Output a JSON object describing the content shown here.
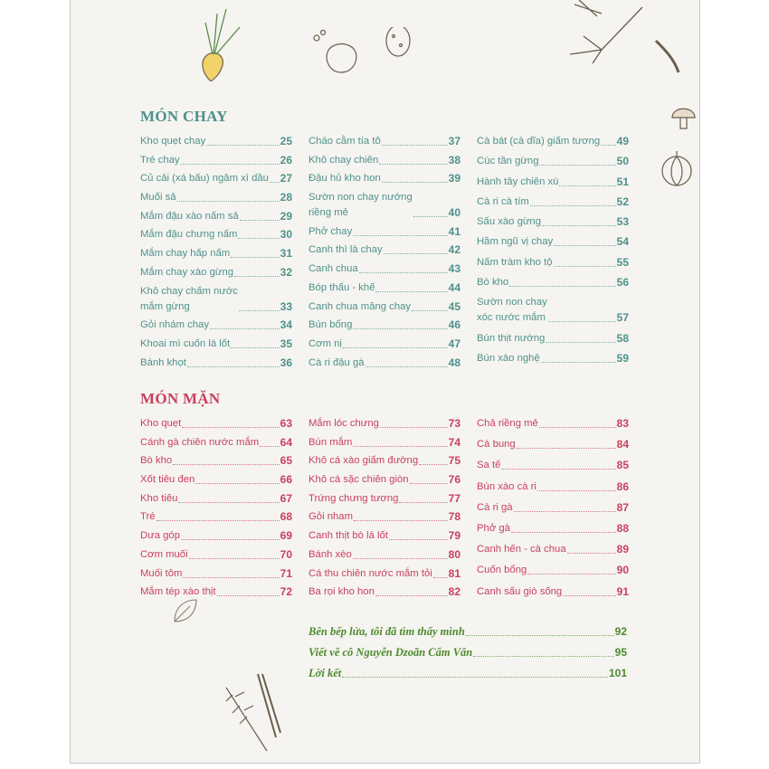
{
  "colors": {
    "chay": "#4e918c",
    "man": "#c9405f",
    "extra": "#4d8a2c"
  },
  "chay": {
    "title": "MÓN CHAY",
    "columns": [
      [
        {
          "title": "Kho quẹt chay",
          "page": "25"
        },
        {
          "title": "Tré chay",
          "page": "26"
        },
        {
          "title": "Củ cải (xá bấu) ngâm xì dầu",
          "page": "27"
        },
        {
          "title": "Muối sả",
          "page": "28"
        },
        {
          "title": "Mắm đậu xào nấm sả",
          "page": "29"
        },
        {
          "title": "Mắm đậu chưng nấm",
          "page": "30"
        },
        {
          "title": "Mắm chay hấp nấm",
          "page": "31"
        },
        {
          "title": "Mắm chay xào gừng",
          "page": "32"
        },
        {
          "title": "Khô chay chấm nước\nmắm gừng",
          "page": "33"
        },
        {
          "title": "Gỏi nhám chay",
          "page": "34"
        },
        {
          "title": "Khoai mì cuốn lá lốt",
          "page": "35"
        },
        {
          "title": "Bánh khọt",
          "page": "36"
        }
      ],
      [
        {
          "title": "Cháo cằm tía tô",
          "page": "37"
        },
        {
          "title": "Khô chay chiên",
          "page": "38"
        },
        {
          "title": "Đậu hủ kho hon",
          "page": "39"
        },
        {
          "title": "Sườn non chay nướng\nriềng mẻ",
          "page": "40"
        },
        {
          "title": "Phở chay",
          "page": "41"
        },
        {
          "title": "Canh thì là chay",
          "page": "42"
        },
        {
          "title": "Canh chua",
          "page": "43"
        },
        {
          "title": "Bóp thấu - khế",
          "page": "44"
        },
        {
          "title": "Canh chua măng chay",
          "page": "45"
        },
        {
          "title": "Bún bổng",
          "page": "46"
        },
        {
          "title": "Cơm nị",
          "page": "47"
        },
        {
          "title": "Cà ri đậu gà",
          "page": "48"
        }
      ],
      [
        {
          "title": "Cà bát (cà dĩa) giấm tương",
          "page": "49"
        },
        {
          "title": "Cúc tần gừng",
          "page": "50"
        },
        {
          "title": "Hành tây chiên xù",
          "page": "51"
        },
        {
          "title": "Cà ri cà tím",
          "page": "52"
        },
        {
          "title": "Sấu xào gừng",
          "page": "53"
        },
        {
          "title": "Hầm ngũ vị chay",
          "page": "54"
        },
        {
          "title": "Nấm tràm kho tộ",
          "page": "55"
        },
        {
          "title": "Bò kho",
          "page": "56"
        },
        {
          "title": "Sườn non chay\nxóc nước mắm",
          "page": "57"
        },
        {
          "title": "Bún thịt nướng",
          "page": "58"
        },
        {
          "title": "Bún xào nghệ",
          "page": "59"
        }
      ]
    ]
  },
  "man": {
    "title": "MÓN MẶN",
    "columns": [
      [
        {
          "title": "Kho quẹt",
          "page": "63"
        },
        {
          "title": "Cánh gà chiên nước mắm",
          "page": "64"
        },
        {
          "title": "Bò kho",
          "page": "65"
        },
        {
          "title": "Xốt tiêu đen",
          "page": "66"
        },
        {
          "title": "Kho tiêu",
          "page": "67"
        },
        {
          "title": "Tré",
          "page": "68"
        },
        {
          "title": "Dưa góp",
          "page": "69"
        },
        {
          "title": "Cơm muối",
          "page": "70"
        },
        {
          "title": "Muối tôm",
          "page": "71"
        },
        {
          "title": "Mắm tép xào thịt",
          "page": "72"
        }
      ],
      [
        {
          "title": "Mắm lóc chưng",
          "page": "73"
        },
        {
          "title": "Bún mắm",
          "page": "74"
        },
        {
          "title": "Khô cá xào giấm đường",
          "page": "75"
        },
        {
          "title": "Khô cá sặc chiên giòn",
          "page": "76"
        },
        {
          "title": "Trứng chưng tương",
          "page": "77"
        },
        {
          "title": "Gỏi nham",
          "page": "78"
        },
        {
          "title": "Canh thịt bò lá lốt",
          "page": "79"
        },
        {
          "title": "Bánh xèo",
          "page": "80"
        },
        {
          "title": "Cá thu chiên nước mắm tỏi",
          "page": "81"
        },
        {
          "title": "Ba rọi kho hon",
          "page": "82"
        }
      ],
      [
        {
          "title": "Chả riềng mẻ",
          "page": "83"
        },
        {
          "title": "Cà bung",
          "page": "84"
        },
        {
          "title": "Sa tế",
          "page": "85"
        },
        {
          "title": "Bún xào cà ri",
          "page": "86"
        },
        {
          "title": "Cà ri gà",
          "page": "87"
        },
        {
          "title": "Phở gà",
          "page": "88"
        },
        {
          "title": "Canh hến - cà chua",
          "page": "89"
        },
        {
          "title": "Cuốn bổng",
          "page": "90"
        },
        {
          "title": "Canh sấu giò sống",
          "page": "91"
        }
      ]
    ]
  },
  "extra": [
    {
      "title": "Bên bếp lửa, tôi đã tìm thấy mình",
      "page": "92"
    },
    {
      "title": "Viết về cô Nguyễn Dzoãn Cẩm Vân",
      "page": "95"
    },
    {
      "title": "Lời kết",
      "page": "101"
    }
  ],
  "decorations": [
    "vegetable-doodle-icon",
    "herb-doodle-icon",
    "leaf-doodle-icon",
    "mushroom-doodle-icon",
    "onion-doodle-icon"
  ]
}
